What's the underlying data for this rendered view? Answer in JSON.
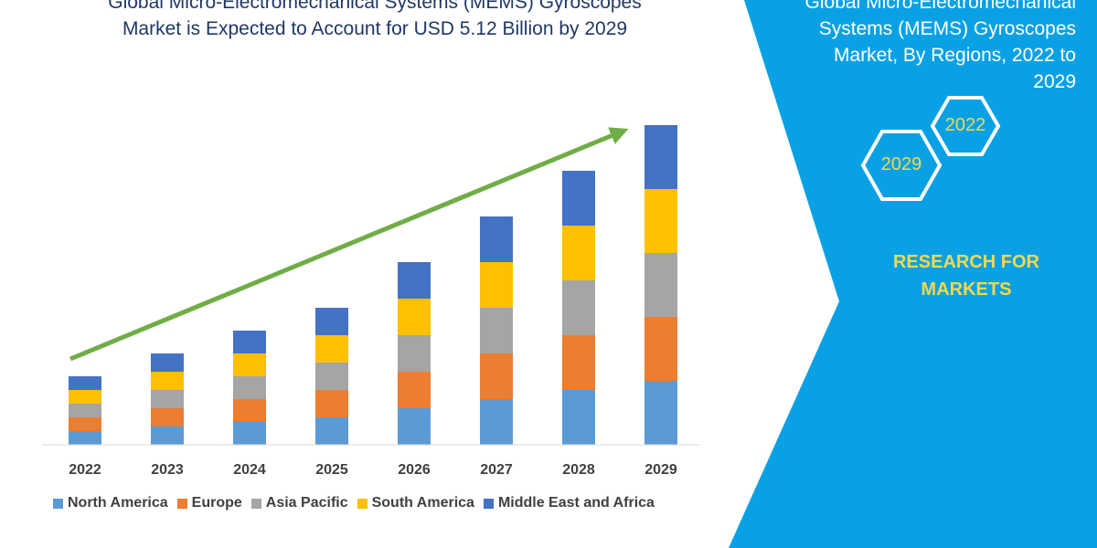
{
  "main": {
    "title_line1": "Global Micro-Electromechanical Systems (MEMS) Gyroscopes",
    "title_line2": "Market is Expected to Account for USD 5.12 Billion by 2029"
  },
  "side": {
    "title_line1": "Global Micro-Electromechanical",
    "title_line2": "Systems (MEMS) Gyroscopes",
    "title_line3": "Market, By Regions, 2022 to",
    "title_line4": "2029",
    "hex_front": "2029",
    "hex_back": "2022",
    "brand_line1": "RESEARCH FOR",
    "brand_line2": "MARKETS",
    "panel_color": "#0aa1e4",
    "accent_color": "#f2d94e"
  },
  "chart_data": {
    "type": "bar",
    "stacked": true,
    "categories": [
      "2022",
      "2023",
      "2024",
      "2025",
      "2026",
      "2027",
      "2028",
      "2029"
    ],
    "series": [
      {
        "name": "North America",
        "color": "#5b9bd5",
        "values": [
          15,
          20,
          25,
          30,
          40,
          50,
          60,
          70
        ]
      },
      {
        "name": "Europe",
        "color": "#ed7d31",
        "values": [
          15,
          20,
          25,
          30,
          40,
          50,
          60,
          70
        ]
      },
      {
        "name": "Asia Pacific",
        "color": "#a5a5a5",
        "values": [
          15,
          20,
          25,
          30,
          40,
          50,
          60,
          70
        ]
      },
      {
        "name": "South America",
        "color": "#ffc000",
        "values": [
          15,
          20,
          25,
          30,
          40,
          50,
          60,
          70
        ]
      },
      {
        "name": "Middle East and Africa",
        "color": "#4472c4",
        "values": [
          15,
          20,
          25,
          30,
          40,
          50,
          60,
          70
        ]
      }
    ],
    "trend_arrow": {
      "color": "#70ad47"
    },
    "legend_position": "bottom",
    "grid": false
  }
}
